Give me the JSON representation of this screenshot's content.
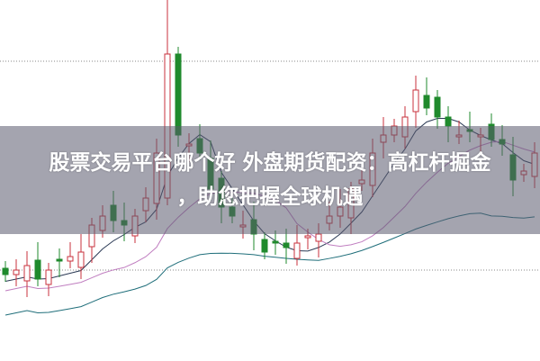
{
  "headline": {
    "line1": "股票交易平台哪个好 外盘期货配资：高杠杆掘金",
    "line2": "，助您把握全球机遇"
  },
  "colors": {
    "up_candle": "#c8323c",
    "down_candle": "#1f8a2c",
    "ma_short": "#2b3a55",
    "ma_mid": "#c07ec0",
    "ma_long": "#1f6e7a",
    "overlay": "#5a5a6e"
  }
}
